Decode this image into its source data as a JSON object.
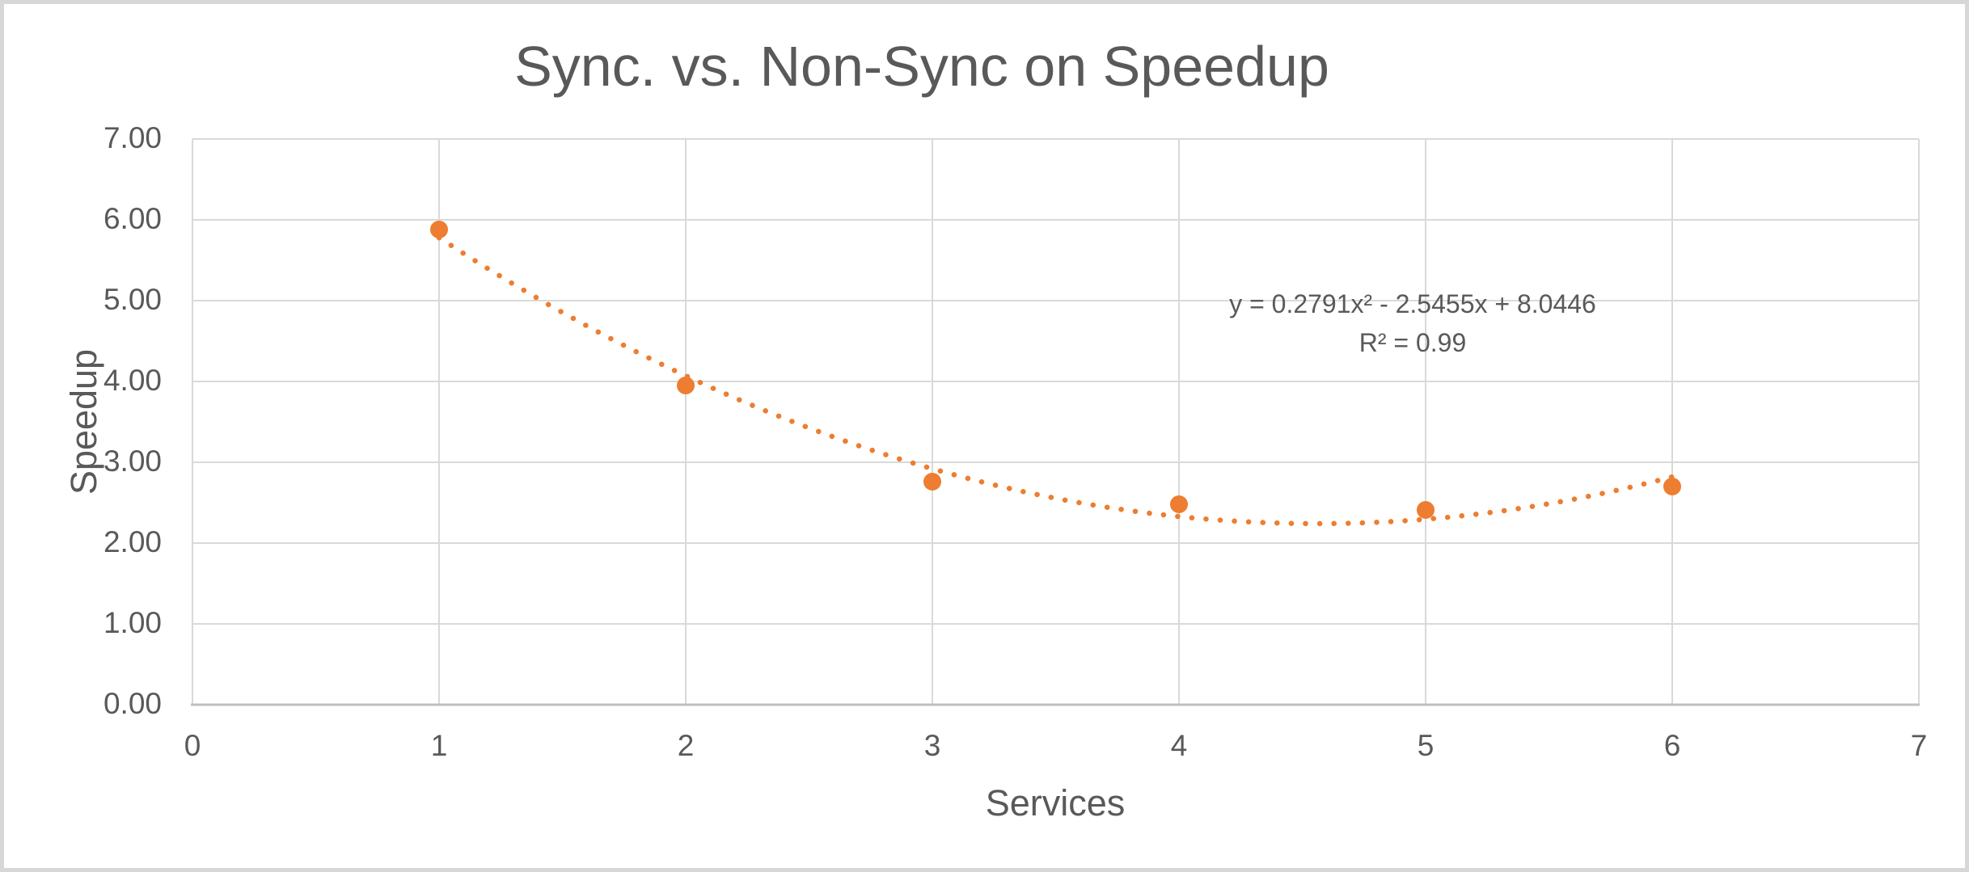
{
  "chart_data": {
    "type": "scatter",
    "title": "Sync. vs. Non-Sync on Speedup",
    "xlabel": "Services",
    "ylabel": "Speedup",
    "xlim": [
      0,
      7
    ],
    "ylim": [
      0,
      7
    ],
    "grid": true,
    "legend_position": "none",
    "x_ticks": [
      "0",
      "1",
      "2",
      "3",
      "4",
      "5",
      "6",
      "7"
    ],
    "y_ticks": [
      "0.00",
      "1.00",
      "2.00",
      "3.00",
      "4.00",
      "5.00",
      "6.00",
      "7.00"
    ],
    "series": [
      {
        "name": "Speedup",
        "marker": "circle",
        "x": [
          1,
          2,
          3,
          4,
          5,
          6
        ],
        "y": [
          5.88,
          3.95,
          2.76,
          2.48,
          2.41,
          2.7
        ]
      }
    ],
    "trendline": {
      "kind": "polynomial-order-2",
      "style": "dotted",
      "coefficients": {
        "a": 0.2791,
        "b": -2.5455,
        "c": 8.0446
      },
      "x_range": [
        1,
        6
      ],
      "equation_label": "y = 0.2791x² - 2.5455x + 8.0446",
      "r_squared_label": "R² = 0.99"
    },
    "colors": {
      "series": "#ED7D31",
      "text": "#595959",
      "grid": "#D9D9D9",
      "axis": "#BFBFBF",
      "frame": "#D7D7D7",
      "background": "#FFFFFF"
    }
  }
}
